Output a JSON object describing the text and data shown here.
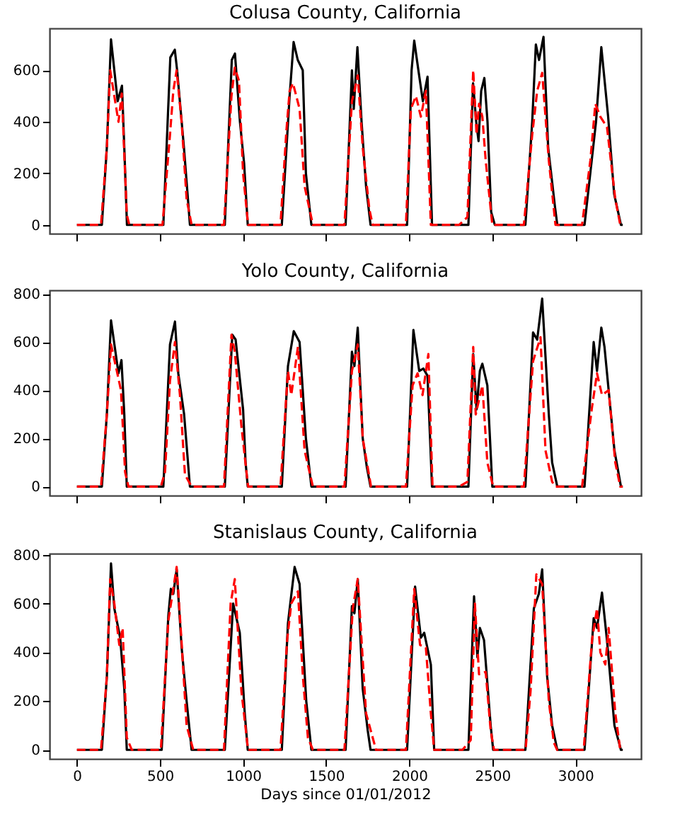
{
  "chart_data": [
    {
      "type": "line",
      "title": "Colusa County, California",
      "xlim": [
        -165,
        3395
      ],
      "xticks": [
        0,
        500,
        1000,
        1500,
        2000,
        2500,
        3000
      ],
      "ylim": [
        -34,
        763
      ],
      "yticks": [
        0,
        200,
        400,
        600
      ],
      "tick_labels": "y",
      "series": [
        {
          "color": "#000000",
          "line_style": "solid",
          "x": [
            0,
            150,
            180,
            205,
            245,
            271,
            285,
            301,
            520,
            562,
            589,
            603,
            644,
            680,
            890,
            932,
            951,
            981,
            1006,
            1028,
            1233,
            1280,
            1304,
            1329,
            1359,
            1378,
            1411,
            1617,
            1655,
            1666,
            1688,
            1713,
            1740,
            1767,
            1987,
            2014,
            2030,
            2055,
            2082,
            2110,
            2137,
            2356,
            2384,
            2403,
            2417,
            2433,
            2452,
            2471,
            2493,
            2515,
            2699,
            2740,
            2762,
            2781,
            2808,
            2836,
            2877,
            2891,
            3055,
            3124,
            3156,
            3197,
            3233,
            3274,
            3285
          ],
          "values": [
            0,
            0,
            300,
            720,
            480,
            540,
            300,
            0,
            0,
            650,
            680,
            600,
            300,
            0,
            0,
            640,
            665,
            400,
            240,
            0,
            0,
            500,
            710,
            640,
            600,
            200,
            0,
            0,
            600,
            450,
            690,
            400,
            150,
            0,
            0,
            600,
            715,
            600,
            480,
            575,
            0,
            0,
            550,
            400,
            325,
            520,
            570,
            400,
            50,
            0,
            0,
            400,
            700,
            640,
            730,
            300,
            70,
            0,
            0,
            400,
            690,
            420,
            120,
            0,
            0
          ]
        },
        {
          "color": "#ff0000",
          "line_style": "dashed",
          "x": [
            0,
            145,
            180,
            200,
            225,
            250,
            270,
            300,
            315,
            515,
            560,
            580,
            600,
            630,
            660,
            690,
            885,
            930,
            950,
            975,
            1000,
            1030,
            1225,
            1260,
            1280,
            1300,
            1340,
            1370,
            1420,
            1610,
            1655,
            1670,
            1690,
            1720,
            1760,
            1780,
            1980,
            2010,
            2040,
            2070,
            2100,
            2130,
            2300,
            2350,
            2385,
            2405,
            2420,
            2440,
            2460,
            2500,
            2690,
            2740,
            2770,
            2800,
            2840,
            2880,
            3040,
            3090,
            3120,
            3150,
            3190,
            3240,
            3270,
            3285
          ],
          "values": [
            0,
            0,
            300,
            600,
            500,
            400,
            510,
            40,
            0,
            0,
            350,
            520,
            600,
            400,
            100,
            0,
            0,
            500,
            610,
            560,
            200,
            0,
            0,
            360,
            520,
            550,
            450,
            150,
            0,
            0,
            480,
            520,
            580,
            300,
            60,
            0,
            0,
            450,
            500,
            420,
            520,
            0,
            0,
            30,
            600,
            350,
            470,
            420,
            250,
            0,
            0,
            350,
            520,
            590,
            250,
            0,
            0,
            250,
            470,
            420,
            380,
            100,
            0,
            0
          ]
        }
      ]
    },
    {
      "type": "line",
      "title": "Yolo County, California",
      "xlim": [
        -165,
        3395
      ],
      "xticks": [
        0,
        500,
        1000,
        1500,
        2000,
        2500,
        3000
      ],
      "ylim": [
        -37,
        815
      ],
      "yticks": [
        0,
        200,
        400,
        600,
        800
      ],
      "tick_labels": "y",
      "series": [
        {
          "color": "#000000",
          "line_style": "solid",
          "x": [
            0,
            150,
            180,
            205,
            250,
            268,
            285,
            300,
            520,
            560,
            590,
            610,
            645,
            680,
            890,
            935,
            955,
            1000,
            1015,
            1028,
            1233,
            1270,
            1305,
            1340,
            1378,
            1411,
            1617,
            1655,
            1670,
            1690,
            1720,
            1745,
            1767,
            1987,
            2025,
            2060,
            2085,
            2110,
            2137,
            2356,
            2385,
            2405,
            2425,
            2440,
            2470,
            2500,
            2699,
            2745,
            2770,
            2800,
            2840,
            2860,
            2891,
            3055,
            3110,
            3130,
            3156,
            3175,
            3235,
            3274,
            3285
          ],
          "values": [
            0,
            0,
            300,
            690,
            470,
            525,
            300,
            0,
            0,
            590,
            685,
            470,
            300,
            0,
            0,
            630,
            610,
            320,
            100,
            0,
            0,
            500,
            645,
            600,
            200,
            0,
            0,
            560,
            500,
            660,
            200,
            80,
            0,
            0,
            650,
            480,
            490,
            460,
            0,
            0,
            550,
            320,
            480,
            510,
            420,
            0,
            0,
            640,
            610,
            780,
            300,
            100,
            0,
            0,
            600,
            480,
            660,
            580,
            150,
            0,
            0
          ]
        },
        {
          "color": "#ff0000",
          "line_style": "dashed",
          "x": [
            0,
            145,
            180,
            205,
            240,
            265,
            290,
            310,
            505,
            530,
            560,
            590,
            620,
            650,
            690,
            885,
            930,
            950,
            990,
            1030,
            1225,
            1270,
            1290,
            1330,
            1370,
            1420,
            1610,
            1655,
            1690,
            1720,
            1770,
            1980,
            2020,
            2050,
            2080,
            2115,
            2140,
            2300,
            2350,
            2385,
            2400,
            2440,
            2470,
            2505,
            2690,
            2745,
            2790,
            2820,
            2860,
            2880,
            3040,
            3100,
            3130,
            3160,
            3200,
            3240,
            3270,
            3285
          ],
          "values": [
            0,
            0,
            300,
            590,
            480,
            400,
            60,
            0,
            0,
            60,
            440,
            600,
            380,
            50,
            0,
            0,
            630,
            560,
            250,
            0,
            0,
            480,
            380,
            580,
            150,
            0,
            0,
            480,
            590,
            200,
            0,
            0,
            420,
            470,
            380,
            550,
            0,
            0,
            20,
            580,
            300,
            420,
            100,
            0,
            0,
            520,
            620,
            150,
            20,
            0,
            0,
            330,
            470,
            380,
            400,
            100,
            0,
            0
          ]
        }
      ]
    },
    {
      "type": "line",
      "title": "Stanislaus County, California",
      "xlabel": "Days since 01/01/2012",
      "xlim": [
        -165,
        3395
      ],
      "xticks": [
        0,
        500,
        1000,
        1500,
        2000,
        2500,
        3000
      ],
      "ylim": [
        -37,
        805
      ],
      "yticks": [
        0,
        200,
        400,
        600,
        800
      ],
      "series": [
        {
          "color": "#000000",
          "line_style": "solid",
          "x": [
            0,
            150,
            180,
            205,
            225,
            260,
            285,
            300,
            510,
            550,
            565,
            580,
            600,
            630,
            660,
            690,
            890,
            940,
            980,
            1010,
            1028,
            1233,
            1270,
            1310,
            1340,
            1380,
            1411,
            1617,
            1655,
            1670,
            1690,
            1720,
            1750,
            1767,
            1987,
            2035,
            2070,
            2090,
            2130,
            2150,
            2356,
            2390,
            2410,
            2425,
            2450,
            2490,
            2505,
            2699,
            2750,
            2780,
            2800,
            2830,
            2860,
            2891,
            3055,
            3110,
            3130,
            3160,
            3190,
            3235,
            3274,
            3285
          ],
          "values": [
            0,
            0,
            300,
            765,
            580,
            460,
            250,
            0,
            0,
            550,
            660,
            640,
            740,
            420,
            200,
            0,
            0,
            600,
            480,
            150,
            0,
            0,
            520,
            750,
            680,
            200,
            0,
            0,
            590,
            560,
            700,
            250,
            80,
            0,
            0,
            670,
            460,
            480,
            350,
            0,
            0,
            630,
            380,
            500,
            450,
            100,
            0,
            0,
            580,
            640,
            740,
            300,
            100,
            0,
            0,
            540,
            500,
            645,
            450,
            100,
            0,
            0
          ]
        },
        {
          "color": "#ff0000",
          "line_style": "dashed",
          "x": [
            0,
            145,
            180,
            200,
            225,
            255,
            275,
            300,
            330,
            505,
            550,
            575,
            600,
            630,
            660,
            700,
            885,
            925,
            950,
            990,
            1030,
            1225,
            1265,
            1290,
            1330,
            1360,
            1390,
            1420,
            1610,
            1660,
            1690,
            1740,
            1780,
            1800,
            1980,
            2030,
            2065,
            2100,
            2130,
            2150,
            2320,
            2370,
            2395,
            2420,
            2460,
            2490,
            2510,
            2700,
            2730,
            2765,
            2800,
            2840,
            2870,
            2890,
            3050,
            3100,
            3130,
            3150,
            3180,
            3200,
            3240,
            3270,
            3285
          ],
          "values": [
            0,
            0,
            300,
            700,
            600,
            430,
            500,
            50,
            0,
            0,
            530,
            640,
            750,
            440,
            100,
            0,
            0,
            600,
            700,
            240,
            0,
            0,
            450,
            600,
            650,
            300,
            50,
            0,
            0,
            580,
            700,
            150,
            50,
            0,
            0,
            660,
            430,
            420,
            150,
            0,
            0,
            40,
            600,
            310,
            320,
            80,
            0,
            0,
            240,
            720,
            680,
            200,
            30,
            0,
            0,
            450,
            580,
            400,
            350,
            500,
            150,
            0,
            0
          ]
        }
      ]
    }
  ]
}
